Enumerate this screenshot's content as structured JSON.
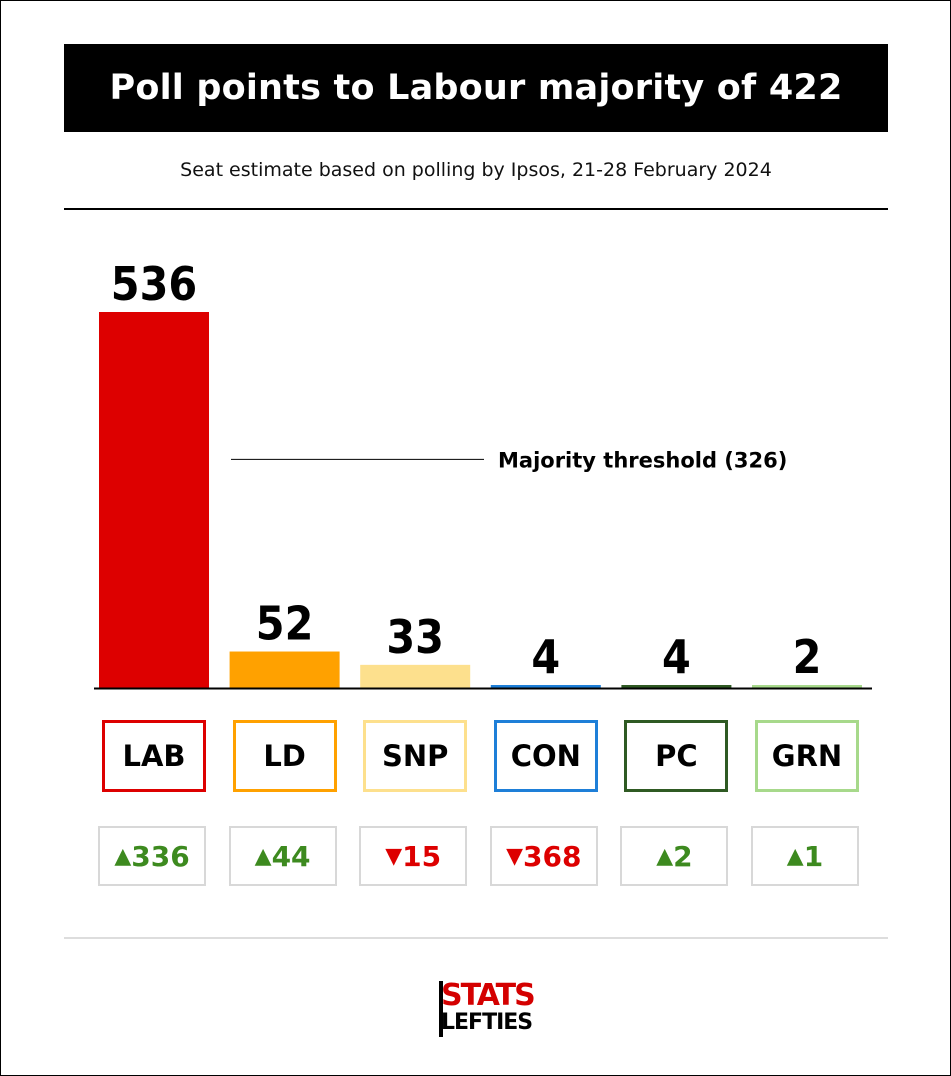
{
  "header": {
    "title": "Poll points to Labour majority of 422",
    "subtitle": "Seat estimate based on polling by Ipsos, 21-28 February 2024"
  },
  "chart_data": {
    "type": "bar",
    "title": "Poll points to Labour majority of 422",
    "subtitle": "Seat estimate based on polling by Ipsos, 21-28 February 2024",
    "categories": [
      "LAB",
      "LD",
      "SNP",
      "CON",
      "PC",
      "GRN"
    ],
    "values": [
      536,
      52,
      33,
      4,
      4,
      2
    ],
    "colors": [
      "#dd0000",
      "#ffa100",
      "#fde08d",
      "#1e7fd8",
      "#2f5a23",
      "#a7d98b"
    ],
    "changes": [
      {
        "direction": "up",
        "text": "336"
      },
      {
        "direction": "up",
        "text": "44"
      },
      {
        "direction": "down",
        "text": "15"
      },
      {
        "direction": "down",
        "text": "368"
      },
      {
        "direction": "up",
        "text": "2"
      },
      {
        "direction": "up",
        "text": "1"
      }
    ],
    "threshold": {
      "value": 326,
      "label": "Majority threshold (326)"
    },
    "ylim": [
      0,
      536
    ],
    "grid": false,
    "legend": "none",
    "change_colors": {
      "up": "#3d8a1f",
      "down": "#dd0000"
    }
  },
  "logo": {
    "line1": "STATS",
    "line2": "LEFTIES"
  }
}
